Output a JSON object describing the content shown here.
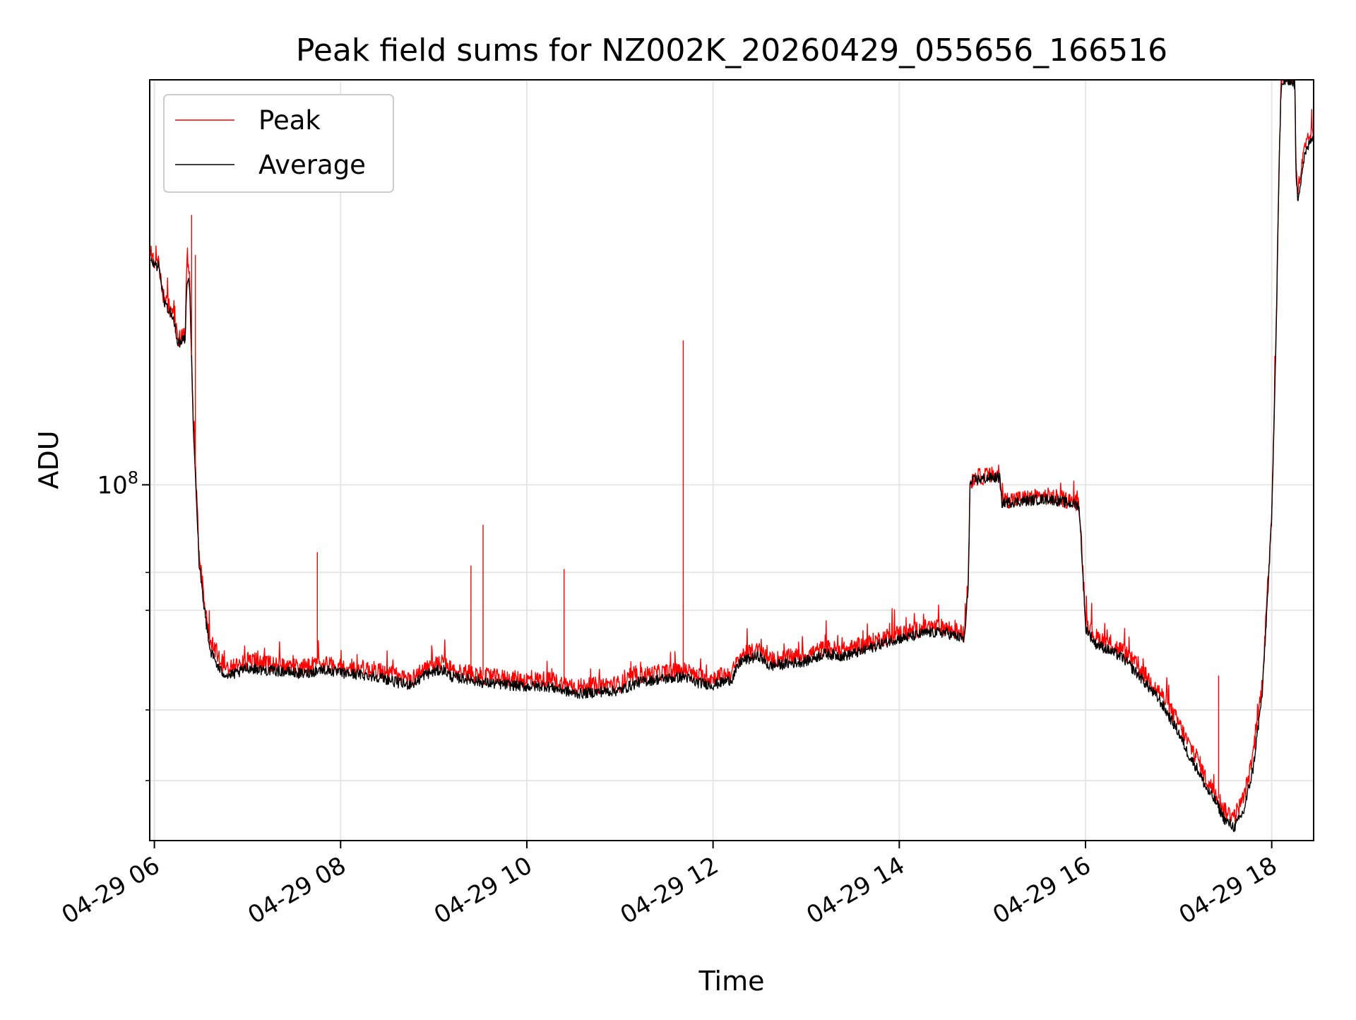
{
  "chart_data": {
    "type": "line",
    "title": "Peak field sums for NZ002K_20260429_055656_166516",
    "xlabel": "Time",
    "ylabel": "ADU",
    "yscale": "log",
    "ylim": [
      23500000,
      520000000
    ],
    "xlim_hours": [
      5.95,
      18.45
    ],
    "grid": true,
    "legend_position": "top-left",
    "x_ticks": [
      {
        "hour": 6,
        "label": "04-29 06"
      },
      {
        "hour": 8,
        "label": "04-29 08"
      },
      {
        "hour": 10,
        "label": "04-29 10"
      },
      {
        "hour": 12,
        "label": "04-29 12"
      },
      {
        "hour": 14,
        "label": "04-29 14"
      },
      {
        "hour": 16,
        "label": "04-29 16"
      },
      {
        "hour": 18,
        "label": "04-29 18"
      }
    ],
    "y_major_ticks": [
      {
        "value": 100000000,
        "base": "10",
        "exp": "8"
      }
    ],
    "y_minor_ticks": [
      30000000,
      40000000,
      60000000,
      70000000
    ],
    "series": [
      {
        "name": "Peak",
        "color": "#ff0000",
        "x_hours": [
          5.96,
          6.05,
          6.1,
          6.2,
          6.26,
          6.3,
          6.33,
          6.35,
          6.38,
          6.42,
          6.45,
          6.48,
          6.55,
          6.6,
          6.65,
          6.7,
          6.8,
          6.9,
          7.0,
          7.2,
          7.4,
          7.6,
          7.8,
          8.0,
          8.2,
          8.4,
          8.6,
          8.7,
          8.8,
          8.9,
          9.1,
          9.2,
          9.4,
          9.5,
          9.6,
          9.8,
          10.0,
          10.2,
          10.4,
          10.5,
          10.6,
          10.8,
          11.0,
          11.2,
          11.4,
          11.6,
          11.7,
          11.8,
          12.0,
          12.2,
          12.3,
          12.5,
          12.6,
          12.8,
          13.0,
          13.2,
          13.4,
          13.6,
          13.8,
          13.95,
          14.1,
          14.3,
          14.5,
          14.7,
          14.74,
          14.76,
          14.8,
          15.0,
          15.08,
          15.1,
          15.3,
          15.6,
          15.8,
          15.93,
          15.96,
          16.0,
          16.1,
          16.2,
          16.4,
          16.6,
          16.8,
          17.0,
          17.1,
          17.2,
          17.3,
          17.4,
          17.5,
          17.6,
          17.7,
          17.8,
          17.9,
          18.0,
          18.05,
          18.08,
          18.1,
          18.15,
          18.2,
          18.25,
          18.26,
          18.28,
          18.35,
          18.45
        ],
        "values": [
          250000000,
          245000000,
          215000000,
          200000000,
          180000000,
          185000000,
          185000000,
          260000000,
          230000000,
          125000000,
          100000000,
          75000000,
          60000000,
          53000000,
          51000000,
          49000000,
          47500000,
          48000000,
          49000000,
          48500000,
          48000000,
          47500000,
          48500000,
          47800000,
          47500000,
          47000000,
          46000000,
          45500000,
          45800000,
          47500000,
          48500000,
          47000000,
          46500000,
          46000000,
          45800000,
          45500000,
          45200000,
          45300000,
          44500000,
          44000000,
          44000000,
          44300000,
          44500000,
          46000000,
          46500000,
          46800000,
          47000000,
          46000000,
          45500000,
          46500000,
          50000000,
          51000000,
          49000000,
          49500000,
          50000000,
          51500000,
          51000000,
          52000000,
          53500000,
          54500000,
          55000000,
          56000000,
          56000000,
          54500000,
          68000000,
          101000000,
          103000000,
          104000000,
          104000000,
          94000000,
          94500000,
          95500000,
          94000000,
          93000000,
          78000000,
          58000000,
          54000000,
          53000000,
          51000000,
          47000000,
          43000000,
          38000000,
          35000000,
          33000000,
          30000000,
          28500000,
          26500000,
          26000000,
          28000000,
          33000000,
          45000000,
          90000000,
          200000000,
          380000000,
          510000000,
          530000000,
          530000000,
          520000000,
          360000000,
          330000000,
          390000000,
          430000000
        ]
      },
      {
        "name": "Average",
        "color": "#000000",
        "x_hours": [
          5.96,
          6.05,
          6.1,
          6.2,
          6.26,
          6.3,
          6.33,
          6.35,
          6.38,
          6.42,
          6.45,
          6.48,
          6.55,
          6.6,
          6.65,
          6.7,
          6.8,
          6.9,
          7.0,
          7.2,
          7.4,
          7.6,
          7.8,
          8.0,
          8.2,
          8.4,
          8.6,
          8.7,
          8.8,
          8.9,
          9.1,
          9.2,
          9.4,
          9.5,
          9.6,
          9.8,
          10.0,
          10.2,
          10.4,
          10.5,
          10.6,
          10.8,
          11.0,
          11.2,
          11.4,
          11.6,
          11.7,
          11.8,
          12.0,
          12.2,
          12.3,
          12.5,
          12.6,
          12.8,
          13.0,
          13.2,
          13.4,
          13.6,
          13.8,
          13.95,
          14.1,
          14.3,
          14.5,
          14.7,
          14.74,
          14.76,
          14.8,
          15.0,
          15.08,
          15.1,
          15.3,
          15.6,
          15.8,
          15.93,
          15.96,
          16.0,
          16.1,
          16.2,
          16.4,
          16.6,
          16.8,
          17.0,
          17.1,
          17.2,
          17.3,
          17.4,
          17.5,
          17.6,
          17.7,
          17.8,
          17.9,
          18.0,
          18.05,
          18.08,
          18.1,
          18.15,
          18.2,
          18.25,
          18.26,
          18.28,
          18.35,
          18.45
        ],
        "values": [
          248000000,
          243000000,
          212000000,
          197000000,
          177000000,
          182000000,
          182000000,
          230000000,
          225000000,
          122000000,
          97000000,
          73000000,
          58000000,
          51000000,
          49000000,
          47000000,
          46000000,
          46500000,
          47500000,
          47000000,
          46800000,
          46300000,
          47200000,
          46500000,
          46200000,
          45800000,
          44800000,
          44300000,
          44600000,
          46200000,
          47200000,
          45700000,
          45300000,
          44800000,
          44600000,
          44300000,
          44000000,
          44100000,
          43300000,
          42800000,
          42800000,
          43100000,
          43300000,
          44800000,
          45300000,
          45600000,
          45800000,
          44800000,
          44300000,
          45300000,
          48800000,
          49800000,
          47800000,
          48300000,
          48800000,
          50300000,
          49800000,
          50800000,
          52300000,
          53300000,
          53800000,
          54800000,
          54800000,
          53300000,
          66000000,
          100000000,
          102000000,
          103000000,
          103000000,
          93000000,
          93500000,
          94500000,
          93000000,
          92000000,
          76000000,
          56000000,
          52500000,
          51500000,
          49500000,
          45500000,
          41500000,
          36500000,
          33500000,
          31500000,
          29000000,
          27500000,
          25500000,
          24800000,
          26500000,
          31500000,
          43000000,
          87000000,
          195000000,
          370000000,
          500000000,
          520000000,
          520000000,
          510000000,
          350000000,
          320000000,
          380000000,
          420000000
        ]
      }
    ],
    "spikes": [
      {
        "hour": 6.4,
        "series": "Peak",
        "value": 300000000
      },
      {
        "hour": 6.44,
        "series": "Peak",
        "value": 255000000
      },
      {
        "hour": 7.75,
        "series": "Peak",
        "value": 76000000
      },
      {
        "hour": 9.4,
        "series": "Peak",
        "value": 72000000
      },
      {
        "hour": 9.53,
        "series": "Peak",
        "value": 85000000
      },
      {
        "hour": 10.4,
        "series": "Peak",
        "value": 71000000
      },
      {
        "hour": 11.68,
        "series": "Peak",
        "value": 180000000
      },
      {
        "hour": 17.43,
        "series": "Peak",
        "value": 46000000
      }
    ]
  },
  "legend": {
    "items": [
      {
        "label": "Peak",
        "color": "#ff0000"
      },
      {
        "label": "Average",
        "color": "#000000"
      }
    ]
  }
}
